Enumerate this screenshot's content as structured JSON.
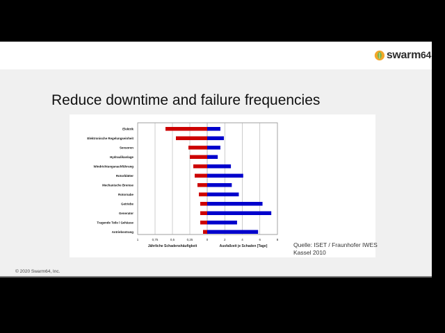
{
  "slide": {
    "logo_text": "swarm",
    "logo_number": "64",
    "logo_icon": "swarm-leaf-logo",
    "title": "Reduce downtime and failure frequencies",
    "source_line1": "Quelle: ISET / Fraunhofer IWES",
    "source_line2": "Kassel 2010",
    "footer": "© 2020 Swarm64, Inc."
  },
  "chart_data": {
    "type": "bar",
    "orientation": "horizontal-butterfly",
    "categories": [
      "Elektrik",
      "Elektronische Regelungseinheit",
      "Sensoren",
      "Hydraulikanlage",
      "Windrichtungsnachführung",
      "Rotorblätter",
      "Mechanische Bremse",
      "Rotornabe",
      "Getriebe",
      "Generator",
      "Tragende Teile / Gehäuse",
      "Antriebsstrang"
    ],
    "left": {
      "xlabel": "Jährliche Schadenshäufigkeit",
      "ticks": [
        "1",
        "0,75",
        "0,5",
        "0,25",
        "0"
      ],
      "xlim": [
        0,
        1
      ],
      "values": [
        0.6,
        0.45,
        0.27,
        0.25,
        0.2,
        0.18,
        0.14,
        0.12,
        0.1,
        0.1,
        0.1,
        0.06
      ],
      "color": "#cc0000"
    },
    "right": {
      "xlabel": "Ausfallzeit je Schaden [Tage]",
      "ticks": [
        "0",
        "2",
        "4",
        "6",
        "8"
      ],
      "xlim": [
        0,
        8
      ],
      "values": [
        1.5,
        1.9,
        1.5,
        1.2,
        2.7,
        4.1,
        2.8,
        3.6,
        6.3,
        7.3,
        3.4,
        5.8
      ],
      "color": "#0000cc"
    },
    "grid": true
  }
}
